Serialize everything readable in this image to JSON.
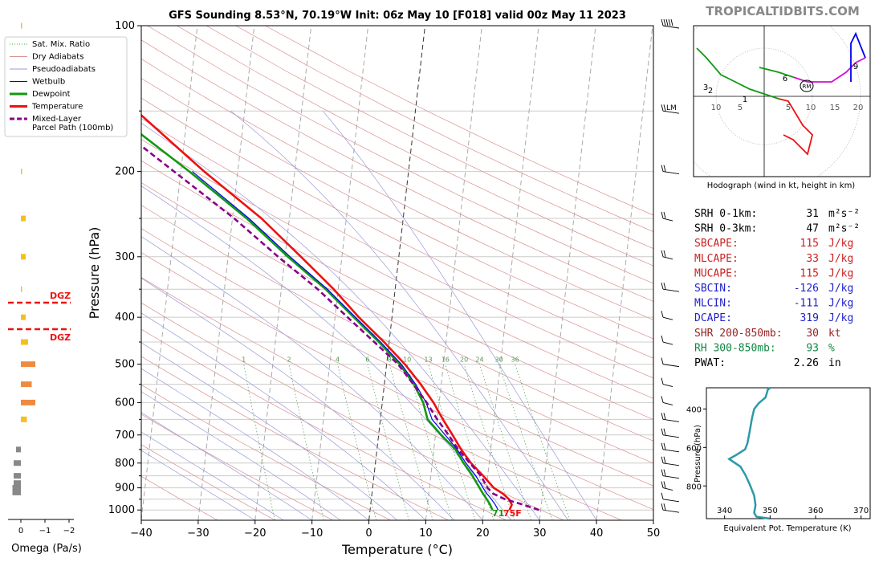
{
  "header": {
    "title": "GFS Sounding 8.53°N, 70.19°W Init: 06z May 10 [F018] valid 00z May 11 2023",
    "watermark": "TROPICALTIDBITS.COM"
  },
  "legend": {
    "items": [
      {
        "label": "Sat. Mix. Ratio",
        "color": "#4f9a4f",
        "style": "dotted",
        "width": 1
      },
      {
        "label": "Dry Adiabats",
        "color": "#d99090",
        "style": "solid",
        "width": 1
      },
      {
        "label": "Pseudoadiabats",
        "color": "#9a9ad8",
        "style": "solid",
        "width": 1
      },
      {
        "label": "Wetbulb",
        "color": "#0000ee",
        "style": "solid",
        "width": 1
      },
      {
        "label": "Dewpoint",
        "color": "#119911",
        "style": "solid",
        "width": 3
      },
      {
        "label": "Temperature",
        "color": "#ee1111",
        "style": "solid",
        "width": 3
      },
      {
        "label": "Mixed-Layer\nParcel Path (100mb)",
        "color": "#880088",
        "style": "dashed",
        "width": 3
      }
    ]
  },
  "omega": {
    "xlabel": "Omega (Pa/s)",
    "ticks": [
      "0",
      "−1",
      "−2"
    ],
    "dgz_label": "DGZ",
    "dgz_color": "#ee1111"
  },
  "skewt": {
    "ylabel": "Pressure (hPa)",
    "xlabel": "Temperature (°C)",
    "y_ticks": [
      "100",
      "200",
      "300",
      "400",
      "500",
      "600",
      "700",
      "800",
      "900",
      "1000"
    ],
    "x_ticks": [
      "−40",
      "−30",
      "−20",
      "−10",
      "0",
      "10",
      "20",
      "30",
      "40",
      "50"
    ],
    "mixing_ratio_labels": [
      "1",
      "2",
      "4",
      "6",
      "8",
      "10",
      "13",
      "16",
      "20",
      "24",
      "30",
      "36"
    ],
    "lcl_annotation": "71",
    "surface_temp_annotation": "75F",
    "lm_label": "LM"
  },
  "hodograph": {
    "caption": "Hodograph (wind in kt, height in km)",
    "ring_labels": [
      "10",
      "5",
      "5",
      "10",
      "15",
      "20"
    ],
    "height_labels": [
      "1",
      "2",
      "3",
      "6",
      "9"
    ],
    "bunkers_label": "RM"
  },
  "indices": [
    {
      "label": "SRH 0-1km:",
      "value": "31",
      "unit": "m²s⁻²",
      "color": "#000000"
    },
    {
      "label": "SRH 0-3km:",
      "value": "47",
      "unit": "m²s⁻²",
      "color": "#000000"
    },
    {
      "label": "SBCAPE:",
      "value": "115",
      "unit": "J/kg",
      "color": "#cc2222"
    },
    {
      "label": "MLCAPE:",
      "value": "33",
      "unit": "J/kg",
      "color": "#cc2222"
    },
    {
      "label": "MUCAPE:",
      "value": "115",
      "unit": "J/kg",
      "color": "#cc2222"
    },
    {
      "label": "SBCIN:",
      "value": "-126",
      "unit": "J/kg",
      "color": "#2222cc"
    },
    {
      "label": "MLCIN:",
      "value": "-111",
      "unit": "J/kg",
      "color": "#2222cc"
    },
    {
      "label": "DCAPE:",
      "value": "319",
      "unit": "J/kg",
      "color": "#2222cc"
    },
    {
      "label": "SHR 200-850mb:",
      "value": "30",
      "unit": "kt",
      "color": "#992222"
    },
    {
      "label": "RH 300-850mb:",
      "value": "93",
      "unit": "%",
      "color": "#118844"
    },
    {
      "label": "PWAT:",
      "value": "2.26",
      "unit": "in",
      "color": "#000000"
    }
  ],
  "theta_e": {
    "ylabel": "Pressure (hPa)",
    "xlabel": "Equivalent Pot. Temperature (K)",
    "y_ticks": [
      "400",
      "600",
      "800"
    ],
    "x_ticks": [
      "340",
      "350",
      "360",
      "370"
    ]
  },
  "chart_data": [
    {
      "type": "line",
      "title": "GFS Sounding 8.53°N, 70.19°W Init: 06z May 10 [F018] valid 00z May 11 2023",
      "xlabel": "Temperature (°C)",
      "ylabel": "Pressure (hPa)",
      "xlim": [
        -40,
        50
      ],
      "ylim": [
        1050,
        100
      ],
      "y_scale": "log",
      "skew_deg_per_decade_p": 0,
      "series": [
        {
          "name": "Temperature",
          "color": "#ee1111",
          "points": [
            [
              24.5,
              1000
            ],
            [
              24.8,
              975
            ],
            [
              24.2,
              950
            ],
            [
              23.0,
              925
            ],
            [
              21.3,
              900
            ],
            [
              19.2,
              850
            ],
            [
              16.8,
              800
            ],
            [
              14.8,
              750
            ],
            [
              13.0,
              700
            ],
            [
              11.0,
              650
            ],
            [
              9.0,
              600
            ],
            [
              6.4,
              550
            ],
            [
              3.2,
              500
            ],
            [
              -0.9,
              450
            ],
            [
              -5.8,
              400
            ],
            [
              -10.8,
              350
            ],
            [
              -17.2,
              300
            ],
            [
              -24.9,
              250
            ],
            [
              -35.9,
              200
            ],
            [
              -49.0,
              150
            ],
            [
              -63.0,
              117
            ],
            [
              -63.4,
              100
            ]
          ]
        },
        {
          "name": "Dewpoint",
          "color": "#119911",
          "points": [
            [
              21.5,
              1000
            ],
            [
              21.0,
              975
            ],
            [
              20.3,
              950
            ],
            [
              19.5,
              925
            ],
            [
              18.8,
              900
            ],
            [
              17.3,
              850
            ],
            [
              15.5,
              800
            ],
            [
              13.8,
              750
            ],
            [
              11.0,
              700
            ],
            [
              8.3,
              650
            ],
            [
              7.2,
              600
            ],
            [
              5.2,
              550
            ],
            [
              2.3,
              500
            ],
            [
              -1.8,
              450
            ],
            [
              -6.7,
              400
            ],
            [
              -12.2,
              350
            ],
            [
              -19.5,
              300
            ],
            [
              -27.5,
              250
            ],
            [
              -38.5,
              200
            ],
            [
              -53.5,
              150
            ],
            [
              -67.5,
              117
            ],
            [
              -67.5,
              100
            ]
          ]
        },
        {
          "name": "Wetbulb",
          "color": "#0000ee",
          "points": [
            [
              22.5,
              1000
            ],
            [
              21.9,
              975
            ],
            [
              21.1,
              950
            ],
            [
              20.2,
              925
            ],
            [
              19.4,
              900
            ],
            [
              17.9,
              850
            ],
            [
              15.9,
              800
            ],
            [
              14.1,
              750
            ],
            [
              11.7,
              700
            ],
            [
              9.1,
              650
            ],
            [
              7.7,
              600
            ],
            [
              5.5,
              550
            ],
            [
              2.6,
              500
            ],
            [
              -1.5,
              450
            ],
            [
              -6.4,
              400
            ],
            [
              -11.9,
              350
            ],
            [
              -19.1,
              300
            ],
            [
              -27.1,
              250
            ],
            [
              -38.0,
              200
            ]
          ]
        },
        {
          "name": "Mixed-Layer Parcel Path (100mb)",
          "color": "#880088",
          "points": [
            [
              29.7,
              1000
            ],
            [
              26.8,
              975
            ],
            [
              23.5,
              950
            ],
            [
              21.3,
              925
            ],
            [
              20.2,
              900
            ],
            [
              18.8,
              850
            ],
            [
              16.6,
              800
            ],
            [
              14.3,
              750
            ],
            [
              12.3,
              700
            ],
            [
              10.0,
              650
            ],
            [
              7.8,
              600
            ],
            [
              5.1,
              550
            ],
            [
              2.0,
              500
            ],
            [
              -2.6,
              450
            ],
            [
              -7.8,
              400
            ],
            [
              -13.6,
              350
            ],
            [
              -21.2,
              300
            ],
            [
              -29.7,
              250
            ],
            [
              -41.2,
              200
            ],
            [
              -56.0,
              150
            ],
            [
              -66.5,
              117
            ],
            [
              -72.0,
              100
            ]
          ]
        }
      ]
    },
    {
      "type": "bar",
      "title": "",
      "xlabel": "Omega (Pa/s)",
      "ylabel": "",
      "xlim": [
        0.5,
        -2
      ],
      "ylim": [
        1050,
        100
      ],
      "categories_pressure": [
        100,
        200,
        250,
        300,
        350,
        400,
        450,
        500,
        550,
        600,
        650,
        750,
        800,
        850,
        880,
        900,
        920
      ],
      "values": [
        -0.05,
        -0.05,
        -0.2,
        -0.2,
        -0.05,
        -0.2,
        -0.3,
        -0.6,
        -0.45,
        -0.6,
        -0.25,
        0.2,
        0.3,
        0.3,
        0.3,
        0.35,
        0.35
      ]
    },
    {
      "type": "line",
      "title": "Hodograph (wind in kt, height in km)",
      "xlabel": "",
      "ylabel": "",
      "series": [
        {
          "name": "0-1 km",
          "color": "#ee1111",
          "points": [
            [
              4,
              -8
            ],
            [
              6,
              -9
            ],
            [
              9,
              -12
            ],
            [
              10,
              -8
            ],
            [
              8,
              -6
            ],
            [
              5,
              -1
            ],
            [
              3,
              -0.5
            ]
          ]
        },
        {
          "name": "1-3 km",
          "color": "#119911",
          "points": [
            [
              3,
              -0.5
            ],
            [
              -3,
              1.5
            ],
            [
              -7,
              3.5
            ],
            [
              -9,
              4.5
            ],
            [
              -12,
              8
            ],
            [
              -14,
              10
            ]
          ]
        },
        {
          "name": "3-6 km",
          "color": "#119911",
          "points": [
            [
              -1,
              6
            ],
            [
              3,
              5
            ],
            [
              6,
              4
            ]
          ]
        },
        {
          "name": "6-9 km",
          "color": "#cc11cc",
          "points": [
            [
              6,
              4
            ],
            [
              9,
              3
            ],
            [
              14,
              3
            ],
            [
              17,
              5
            ],
            [
              19,
              7
            ],
            [
              21,
              8
            ]
          ]
        },
        {
          "name": "9-12 km",
          "color": "#0000ee",
          "points": [
            [
              21,
              8
            ],
            [
              19,
              13
            ],
            [
              18,
              11
            ],
            [
              18,
              3
            ]
          ]
        }
      ]
    },
    {
      "type": "line",
      "title": "",
      "xlabel": "Equivalent Pot. Temperature (K)",
      "ylabel": "Pressure (hPa)",
      "xlim": [
        336,
        372
      ],
      "ylim": [
        970,
        290
      ],
      "series": [
        {
          "name": "",
          "color": "#2a9aa8",
          "points": [
            [
              350.0,
              970
            ],
            [
              347.0,
              960
            ],
            [
              346.5,
              940
            ],
            [
              346.8,
              900
            ],
            [
              346.5,
              850
            ],
            [
              345.5,
              790
            ],
            [
              344.5,
              740
            ],
            [
              343.5,
              700
            ],
            [
              341.0,
              660
            ],
            [
              342.5,
              640
            ],
            [
              344.5,
              610
            ],
            [
              345.0,
              580
            ],
            [
              345.5,
              520
            ],
            [
              346.0,
              450
            ],
            [
              346.5,
              400
            ],
            [
              347.5,
              370
            ],
            [
              349.0,
              340
            ],
            [
              349.5,
              300
            ],
            [
              350.0,
              290
            ]
          ]
        }
      ]
    }
  ]
}
